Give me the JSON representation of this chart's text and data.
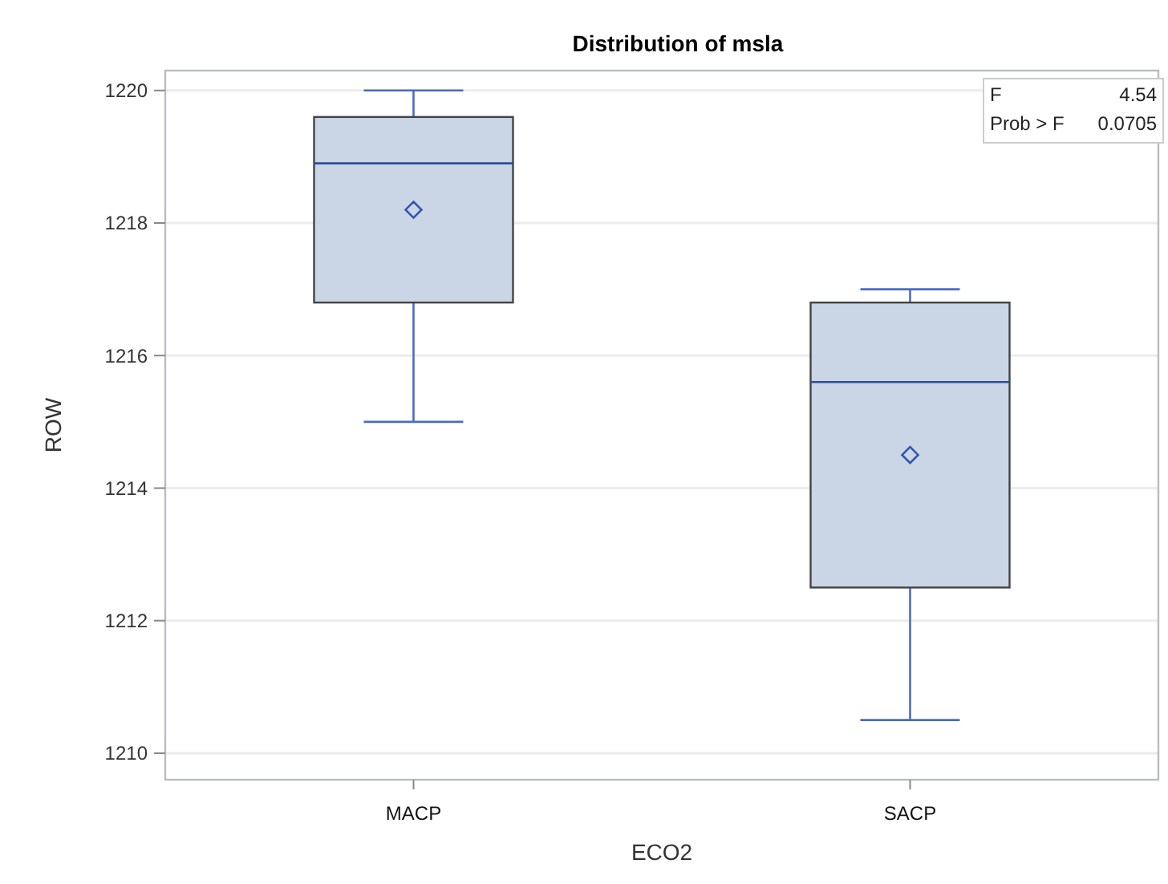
{
  "chart_data": {
    "type": "box",
    "title": "Distribution of msla",
    "xlabel": "ECO2",
    "ylabel": "ROW",
    "categories": [
      "MACP",
      "SACP"
    ],
    "boxes": [
      {
        "low": 1215,
        "q1": 1216.8,
        "median": 1218.9,
        "q3": 1219.6,
        "high": 1220,
        "mean": 1218.2
      },
      {
        "low": 1210.5,
        "q1": 1212.5,
        "median": 1215.6,
        "q3": 1216.8,
        "high": 1217,
        "mean": 1214.5
      }
    ],
    "color": "#cad5e6",
    "ylim": [
      1209.6,
      1220.3
    ],
    "yticks": [
      1210,
      1212,
      1214,
      1216,
      1218,
      1220
    ],
    "grid": "y",
    "marker": "diamond",
    "annotations": [
      "F 4.54",
      "Prob > F 0.0705"
    ]
  }
}
